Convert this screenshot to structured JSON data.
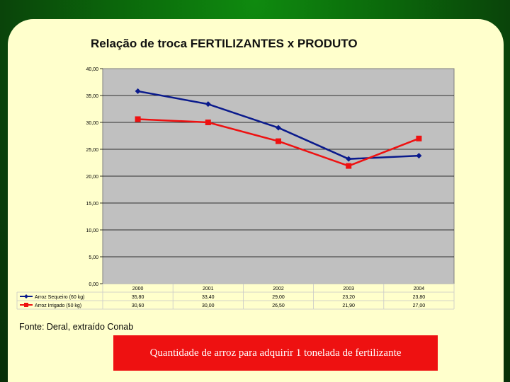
{
  "slide": {
    "title": "Relação de troca FERTILIZANTES x PRODUTO",
    "source": "Fonte: Deral, extraído Conab",
    "caption": "Quantidade de arroz para adquirir 1 tonelada de fertilizante"
  },
  "colors": {
    "background": "#0b6a0b",
    "slide": "#ffffcc",
    "plot_area": "#c0c0c0",
    "caption_bg": "#ee1111"
  },
  "chart_data": {
    "type": "line",
    "title": "Relação de troca FERTILIZANTES x PRODUTO",
    "xlabel": "",
    "ylabel": "",
    "categories": [
      "2000",
      "2001",
      "2002",
      "2003",
      "2004"
    ],
    "ylim": [
      0,
      40
    ],
    "yticks": [
      "0,00",
      "5,00",
      "10,00",
      "15,00",
      "20,00",
      "25,00",
      "30,00",
      "35,00",
      "40,00"
    ],
    "grid": true,
    "legend": "data-table",
    "series": [
      {
        "name": "Arroz Sequeiro (60 kg)",
        "values": [
          35.8,
          33.4,
          29.0,
          23.2,
          23.8
        ],
        "labels": [
          "35,80",
          "33,40",
          "29,00",
          "23,20",
          "23,80"
        ],
        "color": "#0a1a8c",
        "marker": "diamond"
      },
      {
        "name": "Arroz Irrigado (50 kg)",
        "values": [
          30.6,
          30.0,
          26.5,
          21.9,
          27.0
        ],
        "labels": [
          "30,60",
          "30,00",
          "26,50",
          "21,90",
          "27,00"
        ],
        "color": "#ee1111",
        "marker": "square"
      }
    ]
  }
}
